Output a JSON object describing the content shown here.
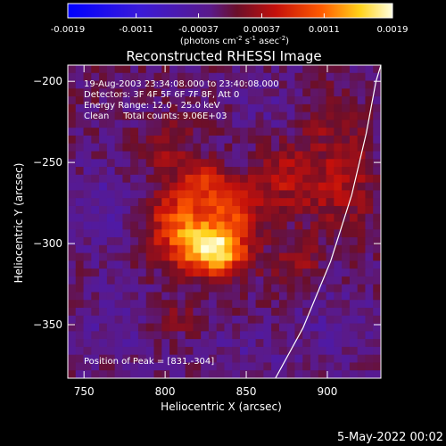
{
  "chart_data": {
    "type": "heatmap",
    "title": "Reconstructed RHESSI Image",
    "xlabel": "Heliocentric X (arcsec)",
    "ylabel": "Heliocentric Y (arcsec)",
    "xlim": [
      740,
      933
    ],
    "ylim": [
      -383,
      -190
    ],
    "x_ticks": [
      750,
      800,
      850,
      900
    ],
    "y_ticks": [
      -200,
      -250,
      -300,
      -350
    ],
    "colorbar": {
      "ticks": [
        "-0.0019",
        "-0.0011",
        "-0.00037",
        "0.00037",
        "0.0011",
        "0.0019"
      ],
      "tick_values": [
        -0.0019,
        -0.0011,
        -0.00037,
        0.00037,
        0.0011,
        0.0019
      ],
      "range": [
        -0.0019,
        0.0019
      ],
      "unit_prefix": "(photons cm",
      "unit_sup1": "-2",
      "unit_mid": " s",
      "unit_sup2": "-1",
      "unit_mid2": " asec",
      "unit_sup3": "-2",
      "unit_suffix": ")"
    },
    "annotations": {
      "line1": "19-Aug-2003 23:34:08.000 to 23:40:08.000",
      "line2": "Detectors: 3F 4F 5F 6F 7F 8F, Att 0",
      "line3": "Energy Range: 12.0 - 25.0 keV",
      "line4": "Clean     Total counts: 9.06E+03",
      "peak": "Position of Peak = [831,-304]"
    },
    "peak_position": [
      831,
      -304
    ],
    "sources": [
      {
        "x": 831,
        "y": -304,
        "sx": 13,
        "sy": 10,
        "amp": 0.00185
      },
      {
        "x": 810,
        "y": -288,
        "sx": 14,
        "sy": 16,
        "amp": 0.0011
      },
      {
        "x": 843,
        "y": -277,
        "sx": 11,
        "sy": 12,
        "amp": 0.00095
      },
      {
        "x": 822,
        "y": -262,
        "sx": 10,
        "sy": 8,
        "amp": 0.0007
      },
      {
        "x": 876,
        "y": -260,
        "sx": 12,
        "sy": 14,
        "amp": 0.00055
      },
      {
        "x": 908,
        "y": -262,
        "sx": 14,
        "sy": 20,
        "amp": 0.00055
      },
      {
        "x": 800,
        "y": -240,
        "sx": 12,
        "sy": 10,
        "amp": 0.0004
      },
      {
        "x": 880,
        "y": -312,
        "sx": 10,
        "sy": 10,
        "amp": 0.00042
      },
      {
        "x": 805,
        "y": -345,
        "sx": 12,
        "sy": 8,
        "amp": 0.00035
      },
      {
        "x": 900,
        "y": -220,
        "sx": 12,
        "sy": 10,
        "amp": 0.00035
      },
      {
        "x": 760,
        "y": -280,
        "sx": 14,
        "sy": 20,
        "amp": -0.0003
      },
      {
        "x": 770,
        "y": -350,
        "sx": 20,
        "sy": 16,
        "amp": -0.00025
      },
      {
        "x": 850,
        "y": -370,
        "sx": 20,
        "sy": 12,
        "amp": -0.00022
      },
      {
        "x": 905,
        "y": -350,
        "sx": 16,
        "sy": 16,
        "amp": -0.00025
      },
      {
        "x": 865,
        "y": -215,
        "sx": 18,
        "sy": 12,
        "amp": -0.00018
      }
    ],
    "limb_curve": [
      [
        868,
        -383
      ],
      [
        885,
        -352
      ],
      [
        902,
        -311
      ],
      [
        915,
        -270
      ],
      [
        924,
        -232
      ],
      [
        930,
        -200
      ],
      [
        933,
        -190
      ]
    ]
  },
  "footer": {
    "date": "5-May-2022 00:02"
  }
}
